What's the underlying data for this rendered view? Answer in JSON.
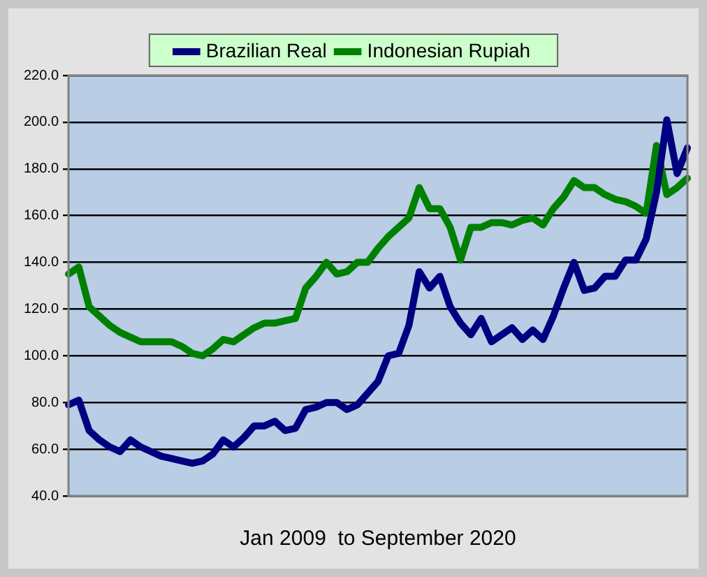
{
  "chart_data": {
    "type": "line",
    "xlabel": "Jan 2009  to September 2020",
    "categories": [
      null,
      null,
      null,
      null,
      null,
      null,
      null,
      null,
      null,
      null,
      null,
      null,
      null,
      null,
      null,
      null,
      null,
      null,
      null,
      null,
      null,
      null,
      null,
      null,
      null,
      null,
      null,
      null,
      null,
      null,
      null,
      null,
      null,
      null,
      null,
      null,
      null,
      null,
      null,
      null,
      null,
      null,
      null,
      null,
      null,
      null,
      null,
      null,
      null,
      null,
      null,
      null,
      null,
      null,
      null,
      null,
      null,
      null,
      null,
      null,
      null
    ],
    "ylim": [
      40,
      220
    ],
    "yticks": [
      {
        "value": 40,
        "label": "40.0"
      },
      {
        "value": 60,
        "label": "60.0"
      },
      {
        "value": 80,
        "label": "80.0"
      },
      {
        "value": 100,
        "label": "100.0"
      },
      {
        "value": 120,
        "label": "120.0"
      },
      {
        "value": 140,
        "label": "140.0"
      },
      {
        "value": 160,
        "label": "160.0"
      },
      {
        "value": 180,
        "label": "180.0"
      },
      {
        "value": 200,
        "label": "200.0"
      },
      {
        "value": 220,
        "label": "220.0"
      }
    ],
    "grid": "y",
    "legend": "top",
    "tick_labels": "y",
    "marker": "none",
    "line_style": "solid",
    "series": [
      {
        "name": "Brazilian Real",
        "color": "#000080",
        "values": [
          79,
          81,
          68,
          64,
          61,
          59,
          64,
          61,
          59,
          57,
          56,
          55,
          54,
          55,
          58,
          64,
          61,
          65,
          70,
          70,
          72,
          68,
          69,
          77,
          78,
          80,
          80,
          77,
          79,
          84,
          89,
          100,
          101,
          113,
          136,
          129,
          134,
          121,
          114,
          109,
          116,
          106,
          109,
          112,
          107,
          111,
          107,
          117,
          129,
          140,
          128,
          129,
          134,
          134,
          141,
          141,
          150,
          170,
          201,
          178,
          189
        ]
      },
      {
        "name": "Indonesian Rupiah",
        "color": "#008000",
        "values": [
          135,
          138,
          121,
          117,
          113,
          110,
          108,
          106,
          106,
          106,
          106,
          104,
          101,
          100,
          103,
          107,
          106,
          109,
          112,
          114,
          114,
          115,
          116,
          129,
          134,
          140,
          135,
          136,
          140,
          140,
          146,
          151,
          155,
          159,
          172,
          163,
          163,
          155,
          141,
          155,
          155,
          157,
          157,
          156,
          158,
          159,
          156,
          163,
          168,
          175,
          172,
          172,
          169,
          167,
          166,
          164,
          161,
          190,
          169,
          172,
          176
        ]
      }
    ]
  }
}
